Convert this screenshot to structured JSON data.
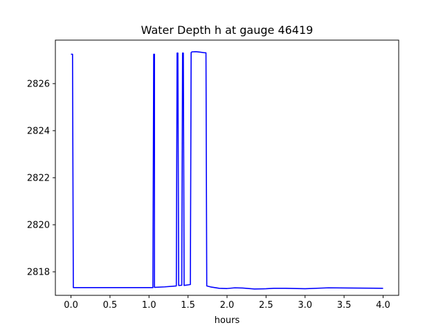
{
  "chart_data": {
    "type": "line",
    "title": "Water Depth h at gauge 46419",
    "xlabel": "hours",
    "ylabel": "",
    "xlim": [
      -0.2,
      4.2
    ],
    "ylim": [
      2817.0,
      2827.85
    ],
    "xticks": [
      0.0,
      0.5,
      1.0,
      1.5,
      2.0,
      2.5,
      3.0,
      3.5,
      4.0
    ],
    "xtick_labels": [
      "0.0",
      "0.5",
      "1.0",
      "1.5",
      "2.0",
      "2.5",
      "3.0",
      "3.5",
      "4.0"
    ],
    "yticks": [
      2818,
      2820,
      2822,
      2824,
      2826
    ],
    "ytick_labels": [
      "2818",
      "2820",
      "2822",
      "2824",
      "2826"
    ],
    "grid": false,
    "line_color": "#0000ff",
    "series": [
      {
        "x": [
          0.0,
          0.02,
          0.03,
          0.5,
          1.0,
          1.05,
          1.06,
          1.07,
          1.07,
          1.08,
          1.2,
          1.35,
          1.36,
          1.37,
          1.38,
          1.39,
          1.42,
          1.43,
          1.44,
          1.45,
          1.53,
          1.54,
          1.55,
          1.6,
          1.65,
          1.72,
          1.73,
          1.74,
          1.8,
          1.9,
          2.0,
          2.1,
          2.2,
          2.35,
          2.5,
          2.6,
          2.75,
          3.0,
          3.3,
          3.6,
          4.0
        ],
        "y": [
          2827.25,
          2827.25,
          2817.33,
          2817.33,
          2817.33,
          2817.33,
          2827.25,
          2827.25,
          2817.34,
          2817.34,
          2817.36,
          2817.4,
          2827.3,
          2827.3,
          2817.42,
          2817.42,
          2817.43,
          2827.3,
          2827.3,
          2817.42,
          2817.46,
          2827.32,
          2827.35,
          2827.36,
          2827.34,
          2827.31,
          2827.31,
          2817.4,
          2817.35,
          2817.3,
          2817.29,
          2817.32,
          2817.31,
          2817.27,
          2817.28,
          2817.3,
          2817.3,
          2817.28,
          2817.32,
          2817.31,
          2817.3
        ]
      }
    ]
  }
}
